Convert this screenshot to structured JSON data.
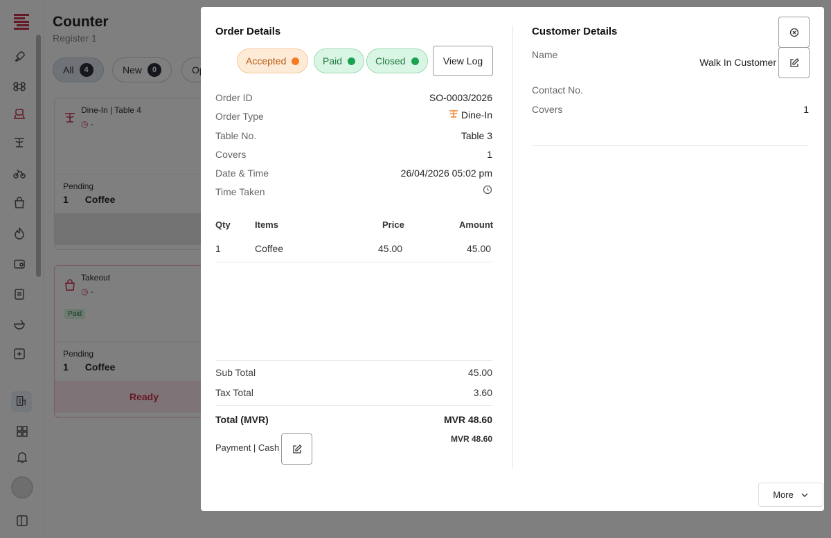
{
  "app": {
    "title": "Counter",
    "subtitle": "Register 1",
    "filters": [
      {
        "label": "All",
        "count": "4"
      },
      {
        "label": "New",
        "count": "0"
      },
      {
        "label": "Op"
      }
    ],
    "cards": [
      {
        "type": "Dine-In | Table 4",
        "time": "-",
        "status": "Pending",
        "qty": "1",
        "item": "Coffee",
        "icon": "dine-in-icon"
      },
      {
        "type": "Takeout",
        "time": "-",
        "tag": "Paid",
        "status": "Pending",
        "qty": "1",
        "item": "Coffee",
        "action": "Ready",
        "icon": "takeout-bag-icon"
      }
    ]
  },
  "order": {
    "title": "Order Details",
    "badges": {
      "accepted": "Accepted",
      "paid": "Paid",
      "closed": "Closed"
    },
    "view_log": "View Log",
    "labels": {
      "order_id": "Order ID",
      "order_type": "Order Type",
      "table_no": "Table No.",
      "covers": "Covers",
      "date_time": "Date & Time",
      "time_taken": "Time Taken"
    },
    "values": {
      "order_id": "SO-0003/2026",
      "order_type": "Dine-In",
      "table_no": "Table 3",
      "covers": "1",
      "date_time": "26/04/2026 05:02 pm"
    },
    "table": {
      "headers": {
        "qty": "Qty",
        "items": "Items",
        "price": "Price",
        "amount": "Amount"
      },
      "rows": [
        {
          "qty": "1",
          "item": "Coffee",
          "price": "45.00",
          "amount": "45.00"
        }
      ]
    },
    "totals": {
      "sub_total_label": "Sub Total",
      "sub_total": "45.00",
      "tax_total_label": "Tax Total",
      "tax_total": "3.60",
      "total_label": "Total (MVR)",
      "total": "MVR 48.60",
      "payment_label": "Payment | Cash",
      "payment": "MVR 48.60"
    }
  },
  "customer": {
    "title": "Customer Details",
    "labels": {
      "name": "Name",
      "contact": "Contact No.",
      "covers": "Covers"
    },
    "values": {
      "name": "Walk In Customer",
      "contact": "",
      "covers": "1"
    }
  },
  "more": "More",
  "colors": {
    "accent": "#c8324a",
    "accepted": "#f57d1f",
    "paid": "#1aa152"
  }
}
